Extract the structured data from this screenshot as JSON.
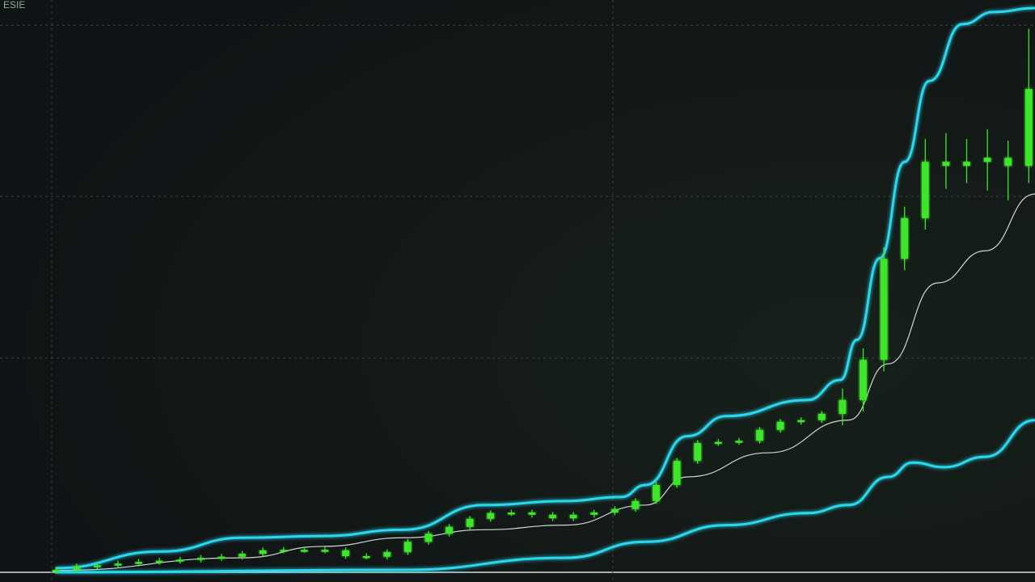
{
  "chart_data": {
    "type": "candlestick",
    "title": "ESIE",
    "x": [
      0,
      1,
      2,
      3,
      4,
      5,
      6,
      7,
      8,
      9,
      10,
      11,
      12,
      13,
      14,
      15,
      16,
      17,
      18,
      19,
      20,
      21,
      22,
      23,
      24,
      25,
      26,
      27,
      28,
      29,
      30,
      31,
      32,
      33,
      34,
      35,
      36,
      37,
      38,
      39,
      40,
      41,
      42,
      43,
      44,
      45,
      46,
      47
    ],
    "open": [
      0.5,
      0.7,
      1.3,
      1.5,
      1.8,
      2.1,
      2.3,
      2.5,
      2.8,
      3.0,
      3.5,
      4.1,
      4.2,
      4.2,
      4.1,
      3.1,
      3.0,
      3.8,
      5.6,
      7.0,
      8.2,
      9.6,
      10.6,
      10.7,
      10.3,
      9.7,
      10.3,
      10.7,
      11.3,
      12.7,
      15.5,
      19.7,
      22.8,
      23.0,
      23.2,
      25.1,
      26.5,
      26.8,
      27.9,
      30.3,
      37.3,
      54.9,
      62.0,
      71.8,
      71.1,
      71.8,
      72.5,
      71.1
    ],
    "high": [
      1.2,
      1.8,
      2.0,
      2.3,
      2.6,
      2.8,
      3.0,
      3.3,
      3.5,
      4.0,
      4.6,
      4.7,
      4.7,
      4.7,
      4.6,
      3.6,
      4.3,
      6.1,
      7.5,
      8.7,
      10.1,
      11.1,
      11.2,
      11.2,
      10.8,
      10.8,
      11.2,
      11.8,
      13.2,
      16.0,
      20.2,
      23.3,
      23.5,
      23.7,
      25.6,
      27.0,
      27.3,
      28.4,
      32.3,
      39.3,
      56.9,
      64.0,
      75.8,
      76.8,
      75.8,
      77.5,
      75.5,
      95.0
    ],
    "low": [
      0.0,
      0.2,
      0.8,
      1.0,
      1.3,
      1.6,
      1.8,
      2.0,
      2.3,
      2.5,
      3.0,
      3.6,
      3.7,
      3.6,
      2.6,
      2.5,
      2.5,
      3.3,
      5.1,
      6.5,
      7.7,
      9.1,
      10.1,
      9.8,
      9.2,
      9.2,
      9.8,
      10.2,
      10.8,
      12.2,
      15.0,
      19.2,
      22.3,
      22.5,
      22.7,
      24.6,
      26.0,
      26.3,
      25.9,
      28.3,
      35.3,
      52.9,
      60.0,
      67.1,
      68.1,
      66.8,
      65.1,
      68.1
    ],
    "close": [
      0.7,
      1.3,
      1.5,
      1.8,
      2.1,
      2.3,
      2.5,
      2.8,
      3.0,
      3.5,
      4.1,
      4.2,
      4.2,
      4.1,
      3.1,
      3.0,
      3.8,
      5.6,
      7.0,
      8.2,
      9.6,
      10.6,
      10.7,
      10.3,
      9.7,
      10.3,
      10.7,
      11.3,
      12.7,
      15.5,
      19.7,
      22.8,
      23.0,
      23.2,
      25.1,
      26.5,
      26.8,
      27.9,
      30.3,
      37.3,
      54.9,
      62.0,
      71.8,
      71.1,
      71.8,
      72.5,
      71.1,
      84.5
    ],
    "color": "#3ee62a",
    "bands": [
      {
        "color": "#2ad8ee",
        "x": [
          0,
          5.1,
          9,
          12.9,
          16.8,
          20.7,
          24.6,
          27.3,
          28.5,
          30.5,
          32.4,
          36.3,
          37.9,
          38.7,
          39.8,
          41,
          42.2,
          43.8,
          45.3,
          47.3
        ],
        "values": [
          1.0,
          3.9,
          6.3,
          6.6,
          7.7,
          12.0,
          12.7,
          13.4,
          15.5,
          24.0,
          27.5,
          30.3,
          33.8,
          40.8,
          55.0,
          71.8,
          85.9,
          95.8,
          97.9,
          98.6
        ]
      },
      {
        "color": "#cfd8d4",
        "x": [
          0,
          9,
          12.9,
          16.8,
          20.7,
          24.6,
          28.5,
          30.5,
          34.4,
          38.3,
          40.2,
          42.6,
          44.9,
          47.3
        ],
        "values": [
          0.6,
          2.8,
          4.8,
          6.3,
          7.7,
          8.5,
          12.0,
          16.9,
          21.1,
          26.8,
          36.6,
          50.7,
          56.3,
          66.2
        ]
      },
      {
        "color": "#2ad8ee",
        "x": [
          0,
          16.8,
          24.6,
          28.5,
          32.4,
          36.3,
          38.3,
          40.2,
          41.4,
          42.9,
          44.9,
          47.3
        ],
        "values": [
          0.3,
          0.7,
          2.8,
          5.6,
          8.5,
          10.6,
          12.0,
          16.9,
          19.4,
          18.6,
          20.4,
          26.8
        ]
      }
    ],
    "xlim": [
      -2.7,
      47.3
    ],
    "ylim": [
      0,
      100
    ],
    "xticks": [
      -0.2,
      26.9
    ],
    "yticks": [
      37.6,
      65.8,
      95.6
    ],
    "grid": true
  }
}
